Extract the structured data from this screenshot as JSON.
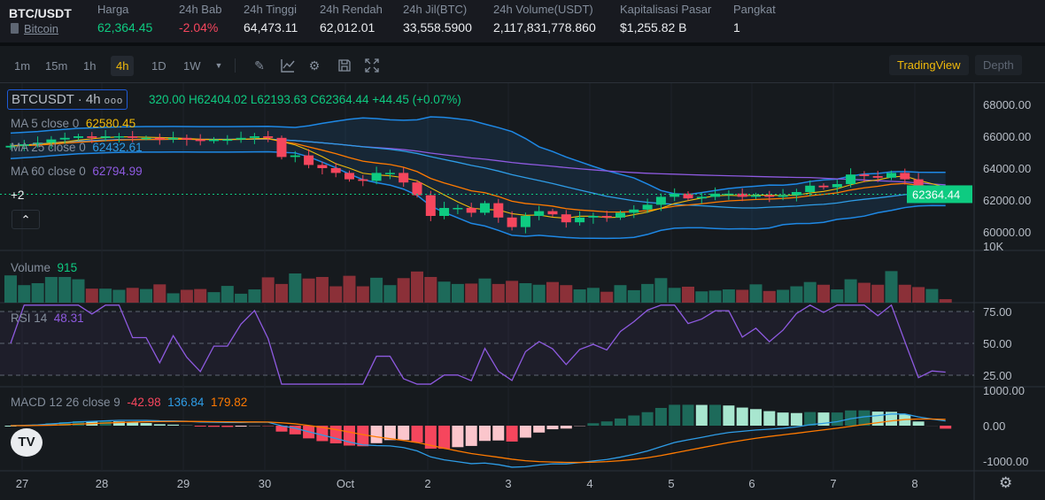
{
  "header": {
    "symbol": "BTC/USDT",
    "coin_link": "Bitcoin",
    "stats": [
      {
        "label": "Harga",
        "value": "62,364.45",
        "color": "#0ecb81"
      },
      {
        "label": "24h Bab",
        "value": "-2.04%",
        "color": "#f6465d"
      },
      {
        "label": "24h Tinggi",
        "value": "64,473.11",
        "color": "#eaecef"
      },
      {
        "label": "24h Rendah",
        "value": "62,012.01",
        "color": "#eaecef"
      },
      {
        "label": "24h Jil(BTC)",
        "value": "33,558.5900",
        "color": "#eaecef"
      },
      {
        "label": "24h Volume(USDT)",
        "value": "2,117,831,778.860",
        "color": "#eaecef"
      },
      {
        "label": "Kapitalisasi Pasar",
        "value": "$1,255.82 B",
        "color": "#eaecef"
      },
      {
        "label": "Pangkat",
        "value": "1",
        "color": "#eaecef"
      }
    ]
  },
  "toolbar": {
    "intervals": [
      "1m",
      "15m",
      "1h",
      "4h",
      "1D",
      "1W"
    ],
    "active": "4h",
    "views": [
      "TradingView",
      "Depth"
    ]
  },
  "legend": {
    "symbol": "BTCUSDT · 4h",
    "ohlc": "320.00  H62404.02  L62193.63  C62364.44  +44.45 (+0.07%)",
    "ma5_label": "MA 5 close 0",
    "ma5": "62580.45",
    "ma25_label": "MA 25 close 0",
    "ma25": "62432.61",
    "ma60_label": "MA 60 close 0",
    "ma60": "62794.99",
    "more": "+2",
    "vol_label": "Volume",
    "vol": "915",
    "rsi_label": "RSI 14",
    "rsi": "48.31",
    "macd_label": "MACD 12 26 close 9",
    "macd_hist": "-42.98",
    "macd_line": "136.84",
    "macd_signal": "179.82"
  },
  "colors": {
    "up": "#0ecb81",
    "down": "#f6465d",
    "ma5": "#f0b90b",
    "ma25": "#2e9ce6",
    "ma60": "#8e5ae0",
    "boll": "#1e88e5"
  },
  "chart_data": {
    "type": "candlestick",
    "price_ticks": [
      "68000.00",
      "66000.00",
      "64000.00",
      "62000.00",
      "60000.00"
    ],
    "last_price": "62364.44",
    "vol_ticks": [
      "10K"
    ],
    "rsi_ticks": [
      "75.00",
      "50.00",
      "25.00"
    ],
    "macd_ticks": [
      "1000.00",
      "0.00",
      "-1000.00"
    ],
    "x_labels": [
      "27",
      "28",
      "29",
      "30",
      "Oct",
      "2",
      "3",
      "4",
      "5",
      "6",
      "7",
      "8"
    ],
    "closes": [
      65400,
      65500,
      65600,
      65800,
      65900,
      66000,
      65900,
      66000,
      66000,
      65900,
      65900,
      65800,
      65900,
      65800,
      65700,
      65800,
      65800,
      65900,
      66000,
      65900,
      64700,
      64800,
      64200,
      64000,
      63700,
      63300,
      63200,
      63700,
      63700,
      63100,
      62300,
      61000,
      61500,
      61500,
      61200,
      61800,
      60900,
      60300,
      61000,
      61300,
      61100,
      60600,
      60900,
      61000,
      60900,
      61200,
      61400,
      61700,
      62200,
      62400,
      62100,
      62200,
      62400,
      62400,
      62200,
      62300,
      62200,
      62300,
      62500,
      62900,
      62800,
      63000,
      63600,
      63500,
      63400,
      63700,
      63300,
      62300,
      62400,
      62364
    ],
    "volumes": [
      7000,
      4500,
      5000,
      6600,
      6600,
      6000,
      3600,
      3600,
      3300,
      3800,
      3500,
      4700,
      2400,
      3300,
      3500,
      2700,
      4300,
      2300,
      3400,
      6500,
      4800,
      7500,
      6200,
      6600,
      4200,
      6900,
      4200,
      6400,
      4500,
      6300,
      8000,
      6600,
      5400,
      4800,
      4900,
      6200,
      4800,
      5600,
      5000,
      4600,
      5300,
      4500,
      3400,
      3800,
      2800,
      4500,
      3200,
      4800,
      6300,
      3800,
      4100,
      2900,
      3100,
      3400,
      3300,
      4700,
      3000,
      3300,
      4200,
      5300,
      4600,
      3400,
      6000,
      5100,
      4600,
      8100,
      4600,
      4000,
      3500,
      900
    ]
  }
}
